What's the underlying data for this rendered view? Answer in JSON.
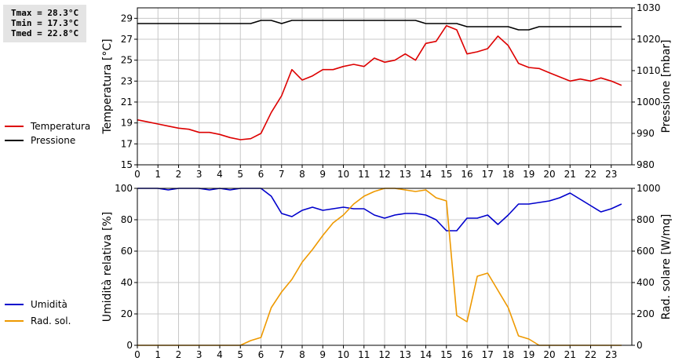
{
  "stats": {
    "tmax": "Tmax = 28.3°C",
    "tmin": "Tmin = 17.3°C",
    "tmed": "Tmed = 22.8°C"
  },
  "chart_data": [
    {
      "type": "line",
      "title": "",
      "xlabel": "",
      "ylabel": "Temperatura [°C]",
      "ylabel_right": "Pressione [mbar]",
      "xlim": [
        0,
        24
      ],
      "x_ticks": [
        "0",
        "1",
        "2",
        "3",
        "4",
        "5",
        "6",
        "7",
        "8",
        "9",
        "10",
        "11",
        "12",
        "13",
        "14",
        "15",
        "16",
        "17",
        "18",
        "19",
        "20",
        "21",
        "22",
        "23"
      ],
      "ylim": [
        15,
        30
      ],
      "y_ticks": [
        "15",
        "17",
        "19",
        "21",
        "23",
        "25",
        "27",
        "29"
      ],
      "ylim_right": [
        980,
        1030
      ],
      "y_ticks_right": [
        "980",
        "990",
        "1000",
        "1010",
        "1020",
        "1030"
      ],
      "grid": true,
      "legend_position": "left",
      "series": [
        {
          "name": "Temperatura",
          "color": "#dd0000",
          "axis": "left",
          "x": [
            0,
            0.5,
            1,
            1.5,
            2,
            2.5,
            3,
            3.5,
            4,
            4.5,
            5,
            5.5,
            6,
            6.5,
            7,
            7.5,
            8,
            8.5,
            9,
            9.5,
            10,
            10.5,
            11,
            11.5,
            12,
            12.5,
            13,
            13.5,
            14,
            14.5,
            15,
            15.5,
            16,
            16.5,
            17,
            17.5,
            18,
            18.5,
            19,
            19.5,
            20,
            20.5,
            21,
            21.5,
            22,
            22.5,
            23,
            23.5
          ],
          "values": [
            19.3,
            19.1,
            18.9,
            18.7,
            18.5,
            18.4,
            18.1,
            18.1,
            17.9,
            17.6,
            17.4,
            17.5,
            18.0,
            20.0,
            21.6,
            24.1,
            23.1,
            23.5,
            24.1,
            24.1,
            24.4,
            24.6,
            24.4,
            25.2,
            24.8,
            25.0,
            25.6,
            25.0,
            26.6,
            26.8,
            28.3,
            27.9,
            25.6,
            25.8,
            26.1,
            27.3,
            26.4,
            24.7,
            24.3,
            24.2,
            23.8,
            23.4,
            23.0,
            23.2,
            23.0,
            23.3,
            23.0,
            22.6
          ]
        },
        {
          "name": "Pressione",
          "color": "#000000",
          "axis": "right",
          "x": [
            0,
            0.5,
            1,
            1.5,
            2,
            2.5,
            3,
            3.5,
            4,
            4.5,
            5,
            5.5,
            6,
            6.5,
            7,
            7.5,
            8,
            8.5,
            9,
            9.5,
            10,
            10.5,
            11,
            11.5,
            12,
            12.5,
            13,
            13.5,
            14,
            14.5,
            15,
            15.5,
            16,
            16.5,
            17,
            17.5,
            18,
            18.5,
            19,
            19.5,
            20,
            20.5,
            21,
            21.5,
            22,
            22.5,
            23,
            23.5
          ],
          "values": [
            1025,
            1025,
            1025,
            1025,
            1025,
            1025,
            1025,
            1025,
            1025,
            1025,
            1025,
            1025,
            1026,
            1026,
            1025,
            1026,
            1026,
            1026,
            1026,
            1026,
            1026,
            1026,
            1026,
            1026,
            1026,
            1026,
            1026,
            1026,
            1025,
            1025,
            1025,
            1025,
            1024,
            1024,
            1024,
            1024,
            1024,
            1023,
            1023,
            1024,
            1024,
            1024,
            1024,
            1024,
            1024,
            1024,
            1024,
            1024
          ]
        }
      ]
    },
    {
      "type": "line",
      "title": "",
      "xlabel": "",
      "ylabel": "Umidità relativa [%]",
      "ylabel_right": "Rad. solare [W/mq]",
      "xlim": [
        0,
        24
      ],
      "x_ticks": [
        "0",
        "1",
        "2",
        "3",
        "4",
        "5",
        "6",
        "7",
        "8",
        "9",
        "10",
        "11",
        "12",
        "13",
        "14",
        "15",
        "16",
        "17",
        "18",
        "19",
        "20",
        "21",
        "22",
        "23"
      ],
      "ylim": [
        0,
        100
      ],
      "y_ticks": [
        "0",
        "20",
        "40",
        "60",
        "80",
        "100"
      ],
      "ylim_right": [
        0,
        1000
      ],
      "y_ticks_right": [
        "0",
        "200",
        "400",
        "600",
        "800",
        "1000"
      ],
      "grid": true,
      "legend_position": "left",
      "series": [
        {
          "name": "Umidità",
          "color": "#0000cc",
          "axis": "left",
          "x": [
            0,
            0.5,
            1,
            1.5,
            2,
            2.5,
            3,
            3.5,
            4,
            4.5,
            5,
            5.5,
            6,
            6.5,
            7,
            7.5,
            8,
            8.5,
            9,
            9.5,
            10,
            10.5,
            11,
            11.5,
            12,
            12.5,
            13,
            13.5,
            14,
            14.5,
            15,
            15.5,
            16,
            16.5,
            17,
            17.5,
            18,
            18.5,
            19,
            19.5,
            20,
            20.5,
            21,
            21.5,
            22,
            22.5,
            23,
            23.5
          ],
          "values": [
            100,
            100,
            100,
            99,
            100,
            100,
            100,
            99,
            100,
            99,
            100,
            100,
            100,
            95,
            84,
            82,
            86,
            88,
            86,
            87,
            88,
            87,
            87,
            83,
            81,
            83,
            84,
            84,
            83,
            80,
            73,
            73,
            81,
            81,
            83,
            77,
            83,
            90,
            90,
            91,
            92,
            94,
            97,
            93,
            89,
            85,
            87,
            90
          ]
        },
        {
          "name": "Rad. sol.",
          "color": "#ee9900",
          "axis": "right",
          "x": [
            0,
            0.5,
            1,
            1.5,
            2,
            2.5,
            3,
            3.5,
            4,
            4.5,
            5,
            5.5,
            6,
            6.5,
            7,
            7.5,
            8,
            8.5,
            9,
            9.5,
            10,
            10.5,
            11,
            11.5,
            12,
            12.5,
            13,
            13.5,
            14,
            14.5,
            15,
            15.5,
            16,
            16.5,
            17,
            17.5,
            18,
            18.5,
            19,
            19.5,
            20,
            20.5,
            21,
            21.5,
            22,
            22.5,
            23,
            23.5
          ],
          "values": [
            0,
            0,
            0,
            0,
            0,
            0,
            0,
            0,
            0,
            0,
            0,
            30,
            50,
            240,
            340,
            420,
            530,
            610,
            700,
            780,
            830,
            900,
            950,
            980,
            1000,
            1000,
            990,
            980,
            990,
            940,
            920,
            190,
            150,
            440,
            460,
            350,
            240,
            60,
            40,
            0,
            0,
            0,
            0,
            0,
            0,
            0,
            0,
            0
          ]
        }
      ]
    }
  ]
}
